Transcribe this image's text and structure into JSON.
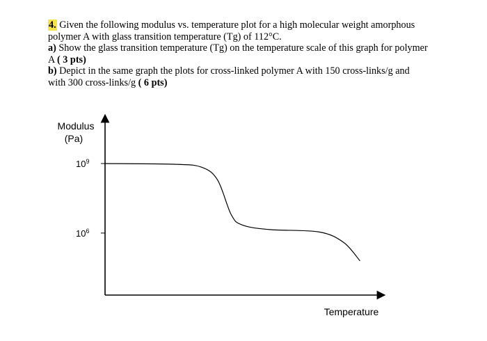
{
  "question": {
    "number": "4.",
    "line1_rest": " Given the following modulus vs. temperature plot for a high molecular weight amorphous",
    "line2": "polymer A with glass transition temperature (Tg) of 112°C.",
    "part_a_label": "a)",
    "part_a_text": " Show the glass transition temperature (Tg) on the temperature scale of this graph for polymer",
    "part_a_cont": "A ",
    "part_a_pts": "( 3 pts)",
    "part_b_label": "b)",
    "part_b_text": " Depict in the same graph the plots for cross-linked polymer A with 150 cross-links/g and",
    "part_b_cont": "with 300 cross-links/g ",
    "part_b_pts": "( 6 pts)"
  },
  "chart_data": {
    "type": "line",
    "ylabel_line1": "Modulus",
    "ylabel_line2": "(Pa)",
    "xlabel": "Temperature",
    "yscale": "log",
    "yticks": [
      {
        "base": "10",
        "exp": "9",
        "value": 1000000000
      },
      {
        "base": "10",
        "exp": "6",
        "value": 1000000
      }
    ],
    "series": [
      {
        "color": "#000000",
        "points_log10": [
          {
            "t": 0.0,
            "logE": 9.0
          },
          {
            "t": 0.25,
            "logE": 8.97
          },
          {
            "t": 0.35,
            "logE": 8.85
          },
          {
            "t": 0.41,
            "logE": 8.3
          },
          {
            "t": 0.46,
            "logE": 6.8
          },
          {
            "t": 0.5,
            "logE": 6.35
          },
          {
            "t": 0.6,
            "logE": 6.15
          },
          {
            "t": 0.78,
            "logE": 6.05
          },
          {
            "t": 0.87,
            "logE": 5.6
          },
          {
            "t": 0.93,
            "logE": 4.8
          }
        ]
      }
    ]
  }
}
